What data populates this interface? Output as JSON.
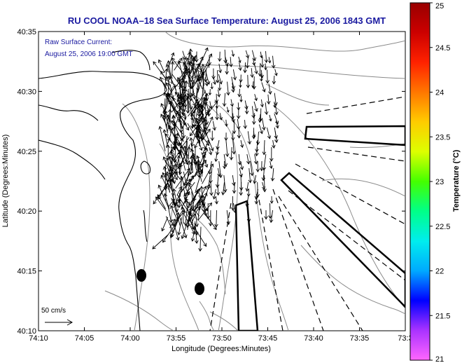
{
  "chart_data": {
    "type": "vector-field-map",
    "title": "RU COOL  NOAA–18  Sea Surface Temperature:  August 25, 2006 1843 GMT",
    "annotation": [
      "Raw Surface Current:",
      "August 25, 2006 19:00 GMT"
    ],
    "xlabel": "Longitude (Degrees:Minutes)",
    "ylabel": "Latitude (Degrees:Minutes)",
    "x_ticks": [
      "74:10",
      "74:05",
      "74:00",
      "73:55",
      "73:50",
      "73:45",
      "73:40",
      "73:35",
      "73:3"
    ],
    "y_ticks": [
      "40:35",
      "40:30",
      "40:25",
      "40:20",
      "40:15",
      "40:10"
    ],
    "xlim_deg_west": [
      74.1667,
      73.5
    ],
    "ylim_deg_north": [
      40.1667,
      40.5833
    ],
    "scale_label": "50 cm/s",
    "colorbar": {
      "label": "Temperature (°C)",
      "ticks": [
        "25",
        "24.5",
        "24",
        "23.5",
        "23",
        "22.5",
        "22",
        "21.5",
        "21"
      ],
      "range": [
        21,
        25
      ],
      "colors": [
        "#ff66ff",
        "#aa33ff",
        "#0000ff",
        "#00aaff",
        "#00eeee",
        "#00ff88",
        "#44ff00",
        "#ddff00",
        "#ffcc00",
        "#ff7700",
        "#ff2200",
        "#cc0000",
        "#990000"
      ]
    },
    "grid": false
  }
}
